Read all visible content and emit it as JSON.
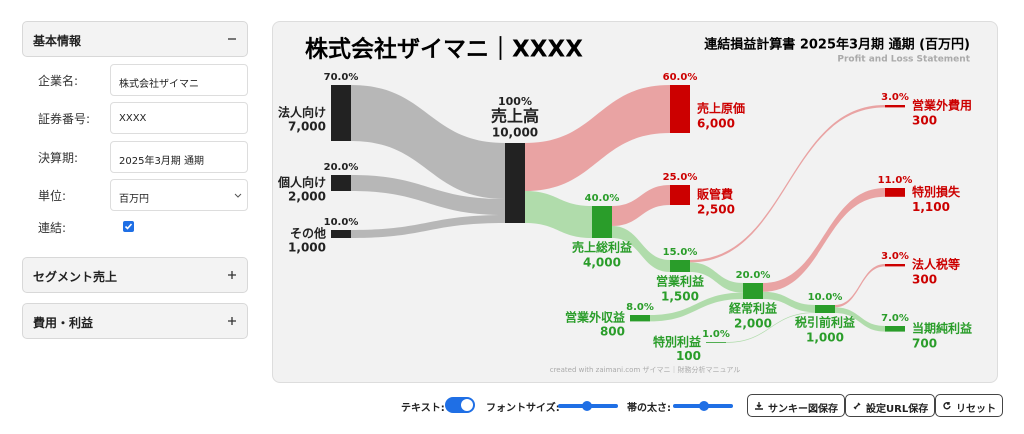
{
  "sidebar": {
    "sections": [
      {
        "title": "基本情報",
        "fields": [
          {
            "label": "企業名:",
            "value": "株式会社ザイマニ"
          },
          {
            "label": "証券番号:",
            "value": "XXXX"
          },
          {
            "label": "決算期:",
            "value": "2025年3月期 通期"
          },
          {
            "label": "単位:",
            "value": "百万円"
          },
          {
            "label": "連結:",
            "checked": true
          }
        ]
      },
      {
        "title": "セグメント売上"
      },
      {
        "title": "費用・利益"
      }
    ]
  },
  "chart_data": {
    "type": "sankey",
    "title": "株式会社ザイマニ｜XXXX",
    "subtitle": "連結損益計算書 2025年3月期 通期 (百万円)",
    "subtitle_en": "Profit and Loss Statement",
    "credit": "created with zaimani.com ザイマニ｜財務分析マニュアル",
    "nodes": [
      "法人向け",
      "個人向け",
      "その他",
      "売上高",
      "売上原価",
      "売上総利益",
      "販管費",
      "営業利益",
      "営業外費用",
      "営業外収益",
      "経常利益",
      "特別損失",
      "特別利益",
      "税引前利益",
      "法人税等",
      "当期純利益"
    ],
    "values": [
      7000,
      2000,
      1000,
      10000,
      6000,
      4000,
      2500,
      1500,
      300,
      800,
      2000,
      1100,
      100,
      1000,
      300,
      700
    ],
    "value_labels": [
      "7,000",
      "2,000",
      "1,000",
      "10,000",
      "6,000",
      "4,000",
      "2,500",
      "1,500",
      "300",
      "800",
      "2,000",
      "1,100",
      "100",
      "1,000",
      "300",
      "700"
    ],
    "percents": [
      70,
      20,
      10,
      100,
      60,
      40,
      25,
      15,
      3,
      8,
      20,
      11,
      1,
      10,
      3,
      7
    ],
    "percent_labels": [
      "70.0%",
      "20.0%",
      "10.0%",
      "100%",
      "60.0%",
      "40.0%",
      "25.0%",
      "15.0%",
      "3.0%",
      "8.0%",
      "20.0%",
      "11.0%",
      "1.0%",
      "10.0%",
      "3.0%",
      "7.0%"
    ],
    "colors": [
      "#222222",
      "#222222",
      "#222222",
      "#222222",
      "#cc0000",
      "#2a9d2a",
      "#cc0000",
      "#2a9d2a",
      "#cc0000",
      "#2a9d2a",
      "#2a9d2a",
      "#cc0000",
      "#2a9d2a",
      "#2a9d2a",
      "#cc0000",
      "#2a9d2a"
    ],
    "links": [
      {
        "source": 0,
        "target": 3,
        "value": 7000,
        "color": "#b0b0b0"
      },
      {
        "source": 1,
        "target": 3,
        "value": 2000,
        "color": "#b0b0b0"
      },
      {
        "source": 2,
        "target": 3,
        "value": 1000,
        "color": "#b0b0b0"
      },
      {
        "source": 3,
        "target": 4,
        "value": 6000,
        "color": "#e89a9a"
      },
      {
        "source": 3,
        "target": 5,
        "value": 4000,
        "color": "#a9d9a3"
      },
      {
        "source": 5,
        "target": 6,
        "value": 2500,
        "color": "#e89a9a"
      },
      {
        "source": 5,
        "target": 7,
        "value": 1500,
        "color": "#a9d9a3"
      },
      {
        "source": 7,
        "target": 8,
        "value": 300,
        "color": "#e89a9a"
      },
      {
        "source": 7,
        "target": 10,
        "value": 1200,
        "color": "#a9d9a3"
      },
      {
        "source": 9,
        "target": 10,
        "value": 800,
        "color": "#a9d9a3"
      },
      {
        "source": 10,
        "target": 11,
        "value": 1100,
        "color": "#e89a9a"
      },
      {
        "source": 10,
        "target": 13,
        "value": 900,
        "color": "#a9d9a3"
      },
      {
        "source": 12,
        "target": 13,
        "value": 100,
        "color": "#a9d9a3"
      },
      {
        "source": 13,
        "target": 14,
        "value": 300,
        "color": "#e89a9a"
      },
      {
        "source": 13,
        "target": 15,
        "value": 700,
        "color": "#a9d9a3"
      }
    ]
  },
  "toolbar": {
    "text_label": "テキスト:",
    "text_on": true,
    "font_label": "フォントサイズ:",
    "width_label": "帯の太さ:",
    "buttons": [
      "サンキー図保存",
      "設定URL保存",
      "リセット"
    ]
  }
}
